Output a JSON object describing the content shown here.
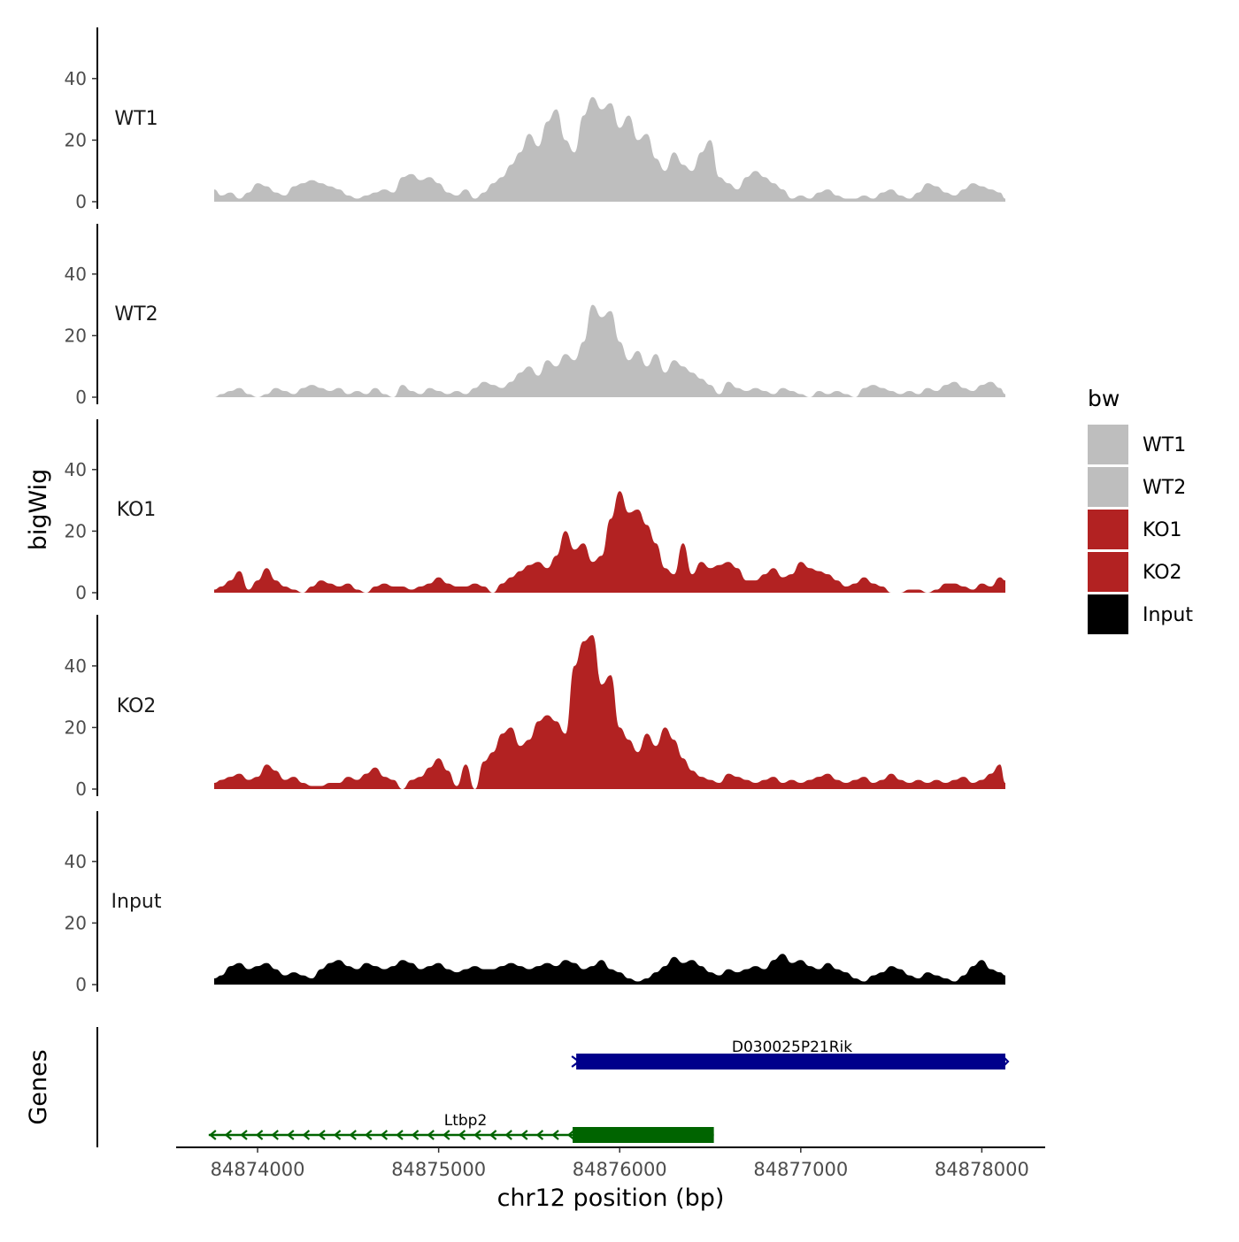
{
  "chart_data": {
    "type": "area",
    "chrom": "chr12",
    "xlabel": "chr12 position (bp)",
    "ylabel": "bigWig",
    "xlim": [
      84873550,
      84878350
    ],
    "data_range": [
      84873760,
      84878130
    ],
    "xticks": [
      84874000,
      84875000,
      84876000,
      84877000,
      84878000
    ],
    "xtick_labels": [
      "84874000",
      "84875000",
      "84876000",
      "84877000",
      "84878000"
    ],
    "ylim": [
      0,
      55
    ],
    "yticks": [
      0,
      20,
      40
    ],
    "ytick_labels": [
      "0",
      "20",
      "40"
    ],
    "legend": {
      "title": "bw",
      "position": "right",
      "items": [
        {
          "label": "WT1",
          "color": "#BEBEBE"
        },
        {
          "label": "WT2",
          "color": "#BEBEBE"
        },
        {
          "label": "KO1",
          "color": "#B22222"
        },
        {
          "label": "KO2",
          "color": "#B22222"
        },
        {
          "label": "Input",
          "color": "#000000"
        }
      ]
    },
    "series": [
      {
        "name": "WT1",
        "color": "#BEBEBE",
        "x": [
          84873760,
          84873800,
          84873850,
          84873900,
          84873950,
          84874000,
          84874050,
          84874100,
          84874150,
          84874200,
          84874250,
          84874300,
          84874350,
          84874400,
          84874450,
          84874500,
          84874550,
          84874600,
          84874650,
          84874700,
          84874750,
          84874800,
          84874850,
          84874900,
          84874950,
          84875000,
          84875050,
          84875100,
          84875150,
          84875200,
          84875250,
          84875300,
          84875350,
          84875400,
          84875450,
          84875500,
          84875550,
          84875600,
          84875650,
          84875700,
          84875750,
          84875800,
          84875850,
          84875900,
          84875950,
          84876000,
          84876050,
          84876100,
          84876150,
          84876200,
          84876250,
          84876300,
          84876350,
          84876400,
          84876450,
          84876500,
          84876550,
          84876600,
          84876650,
          84876700,
          84876750,
          84876800,
          84876850,
          84876900,
          84876950,
          84877000,
          84877050,
          84877100,
          84877150,
          84877200,
          84877250,
          84877300,
          84877350,
          84877400,
          84877450,
          84877500,
          84877550,
          84877600,
          84877650,
          84877700,
          84877750,
          84877800,
          84877850,
          84877900,
          84877950,
          84878000,
          84878050,
          84878100,
          84878130
        ],
        "values": [
          4,
          2,
          3,
          1,
          3,
          6,
          5,
          3,
          2,
          5,
          6,
          7,
          6,
          5,
          4,
          2,
          1,
          2,
          3,
          4,
          3,
          8,
          9,
          7,
          8,
          6,
          3,
          2,
          4,
          1,
          3,
          6,
          8,
          12,
          16,
          22,
          18,
          26,
          30,
          20,
          16,
          28,
          34,
          30,
          32,
          24,
          28,
          20,
          22,
          14,
          10,
          16,
          12,
          10,
          16,
          20,
          8,
          6,
          4,
          8,
          10,
          8,
          6,
          4,
          1,
          2,
          1,
          3,
          4,
          2,
          1,
          1,
          2,
          1,
          3,
          4,
          2,
          1,
          3,
          6,
          5,
          3,
          2,
          4,
          6,
          5,
          4,
          3,
          1
        ]
      },
      {
        "name": "WT2",
        "color": "#BEBEBE",
        "x": [
          84873760,
          84873800,
          84873850,
          84873900,
          84873950,
          84874000,
          84874050,
          84874100,
          84874150,
          84874200,
          84874250,
          84874300,
          84874350,
          84874400,
          84874450,
          84874500,
          84874550,
          84874600,
          84874650,
          84874700,
          84874750,
          84874800,
          84874850,
          84874900,
          84874950,
          84875000,
          84875050,
          84875100,
          84875150,
          84875200,
          84875250,
          84875300,
          84875350,
          84875400,
          84875450,
          84875500,
          84875550,
          84875600,
          84875650,
          84875700,
          84875750,
          84875800,
          84875850,
          84875900,
          84875950,
          84876000,
          84876050,
          84876100,
          84876150,
          84876200,
          84876250,
          84876300,
          84876350,
          84876400,
          84876450,
          84876500,
          84876550,
          84876600,
          84876650,
          84876700,
          84876750,
          84876800,
          84876850,
          84876900,
          84876950,
          84877000,
          84877050,
          84877100,
          84877150,
          84877200,
          84877250,
          84877300,
          84877350,
          84877400,
          84877450,
          84877500,
          84877550,
          84877600,
          84877650,
          84877700,
          84877750,
          84877800,
          84877850,
          84877900,
          84877950,
          84878000,
          84878050,
          84878100,
          84878130
        ],
        "values": [
          0,
          1,
          2,
          3,
          1,
          0,
          1,
          3,
          2,
          1,
          3,
          4,
          3,
          2,
          3,
          1,
          2,
          1,
          3,
          1,
          0,
          4,
          2,
          1,
          3,
          2,
          1,
          2,
          1,
          3,
          5,
          4,
          3,
          5,
          8,
          10,
          7,
          12,
          10,
          14,
          12,
          18,
          30,
          26,
          28,
          18,
          12,
          15,
          10,
          14,
          8,
          12,
          10,
          8,
          6,
          4,
          1,
          5,
          3,
          2,
          3,
          2,
          1,
          3,
          2,
          1,
          0,
          2,
          1,
          2,
          1,
          0,
          3,
          4,
          3,
          2,
          1,
          2,
          1,
          3,
          2,
          4,
          5,
          3,
          2,
          4,
          5,
          3,
          1
        ]
      },
      {
        "name": "KO1",
        "color": "#B22222",
        "x": [
          84873760,
          84873800,
          84873850,
          84873900,
          84873950,
          84874000,
          84874050,
          84874100,
          84874150,
          84874200,
          84874250,
          84874300,
          84874350,
          84874400,
          84874450,
          84874500,
          84874550,
          84874600,
          84874650,
          84874700,
          84874750,
          84874800,
          84874850,
          84874900,
          84874950,
          84875000,
          84875050,
          84875100,
          84875150,
          84875200,
          84875250,
          84875300,
          84875350,
          84875400,
          84875450,
          84875500,
          84875550,
          84875600,
          84875650,
          84875700,
          84875750,
          84875800,
          84875850,
          84875900,
          84875950,
          84876000,
          84876050,
          84876100,
          84876150,
          84876200,
          84876250,
          84876300,
          84876350,
          84876400,
          84876450,
          84876500,
          84876550,
          84876600,
          84876650,
          84876700,
          84876750,
          84876800,
          84876850,
          84876900,
          84876950,
          84877000,
          84877050,
          84877100,
          84877150,
          84877200,
          84877250,
          84877300,
          84877350,
          84877400,
          84877450,
          84877500,
          84877550,
          84877600,
          84877650,
          84877700,
          84877750,
          84877800,
          84877850,
          84877900,
          84877950,
          84878000,
          84878050,
          84878100,
          84878130
        ],
        "values": [
          1,
          2,
          4,
          7,
          1,
          4,
          8,
          4,
          2,
          1,
          0,
          2,
          4,
          3,
          2,
          3,
          1,
          0,
          2,
          3,
          2,
          2,
          1,
          2,
          3,
          5,
          3,
          2,
          2,
          3,
          2,
          0,
          3,
          5,
          7,
          9,
          10,
          8,
          12,
          20,
          14,
          16,
          10,
          12,
          24,
          33,
          26,
          27,
          22,
          16,
          8,
          6,
          16,
          6,
          10,
          8,
          9,
          10,
          8,
          4,
          4,
          6,
          8,
          5,
          6,
          10,
          8,
          7,
          6,
          4,
          2,
          3,
          5,
          3,
          2,
          0,
          0,
          1,
          1,
          0,
          1,
          3,
          3,
          2,
          1,
          3,
          2,
          5,
          4
        ]
      },
      {
        "name": "KO2",
        "color": "#B22222",
        "x": [
          84873760,
          84873800,
          84873850,
          84873900,
          84873950,
          84874000,
          84874050,
          84874100,
          84874150,
          84874200,
          84874250,
          84874300,
          84874350,
          84874400,
          84874450,
          84874500,
          84874550,
          84874600,
          84874650,
          84874700,
          84874750,
          84874800,
          84874850,
          84874900,
          84874950,
          84875000,
          84875050,
          84875100,
          84875150,
          84875200,
          84875250,
          84875300,
          84875350,
          84875400,
          84875450,
          84875500,
          84875550,
          84875600,
          84875650,
          84875700,
          84875750,
          84875800,
          84875850,
          84875900,
          84875950,
          84876000,
          84876050,
          84876100,
          84876150,
          84876200,
          84876250,
          84876300,
          84876350,
          84876400,
          84876450,
          84876500,
          84876550,
          84876600,
          84876650,
          84876700,
          84876750,
          84876800,
          84876850,
          84876900,
          84876950,
          84877000,
          84877050,
          84877100,
          84877150,
          84877200,
          84877250,
          84877300,
          84877350,
          84877400,
          84877450,
          84877500,
          84877550,
          84877600,
          84877650,
          84877700,
          84877750,
          84877800,
          84877850,
          84877900,
          84877950,
          84878000,
          84878050,
          84878100,
          84878130
        ],
        "values": [
          2,
          3,
          4,
          5,
          3,
          4,
          8,
          6,
          3,
          4,
          2,
          1,
          1,
          2,
          2,
          4,
          3,
          5,
          7,
          4,
          3,
          0,
          3,
          4,
          7,
          10,
          6,
          1,
          8,
          0,
          9,
          12,
          18,
          20,
          14,
          16,
          22,
          24,
          22,
          18,
          40,
          48,
          50,
          34,
          37,
          20,
          16,
          12,
          18,
          14,
          20,
          16,
          10,
          6,
          4,
          3,
          2,
          5,
          4,
          3,
          2,
          3,
          4,
          2,
          3,
          2,
          3,
          4,
          5,
          3,
          2,
          3,
          4,
          2,
          3,
          5,
          3,
          2,
          3,
          2,
          3,
          2,
          3,
          4,
          2,
          3,
          5,
          8,
          2
        ]
      },
      {
        "name": "Input",
        "color": "#000000",
        "x": [
          84873760,
          84873800,
          84873850,
          84873900,
          84873950,
          84874000,
          84874050,
          84874100,
          84874150,
          84874200,
          84874250,
          84874300,
          84874350,
          84874400,
          84874450,
          84874500,
          84874550,
          84874600,
          84874650,
          84874700,
          84874750,
          84874800,
          84874850,
          84874900,
          84874950,
          84875000,
          84875050,
          84875100,
          84875150,
          84875200,
          84875250,
          84875300,
          84875350,
          84875400,
          84875450,
          84875500,
          84875550,
          84875600,
          84875650,
          84875700,
          84875750,
          84875800,
          84875850,
          84875900,
          84875950,
          84876000,
          84876050,
          84876100,
          84876150,
          84876200,
          84876250,
          84876300,
          84876350,
          84876400,
          84876450,
          84876500,
          84876550,
          84876600,
          84876650,
          84876700,
          84876750,
          84876800,
          84876850,
          84876900,
          84876950,
          84877000,
          84877050,
          84877100,
          84877150,
          84877200,
          84877250,
          84877300,
          84877350,
          84877400,
          84877450,
          84877500,
          84877550,
          84877600,
          84877650,
          84877700,
          84877750,
          84877800,
          84877850,
          84877900,
          84877950,
          84878000,
          84878050,
          84878100,
          84878130
        ],
        "values": [
          2,
          3,
          6,
          7,
          5,
          6,
          7,
          5,
          3,
          4,
          3,
          2,
          5,
          7,
          8,
          6,
          5,
          7,
          6,
          5,
          6,
          8,
          7,
          5,
          6,
          7,
          5,
          4,
          5,
          6,
          5,
          5,
          6,
          7,
          6,
          5,
          6,
          7,
          6,
          8,
          7,
          5,
          6,
          8,
          5,
          4,
          2,
          1,
          2,
          4,
          6,
          9,
          7,
          8,
          6,
          4,
          3,
          5,
          4,
          5,
          6,
          5,
          8,
          10,
          7,
          8,
          6,
          5,
          7,
          5,
          4,
          2,
          1,
          3,
          4,
          6,
          5,
          3,
          2,
          4,
          3,
          2,
          1,
          3,
          6,
          8,
          5,
          4,
          3
        ]
      }
    ],
    "genes": {
      "track_label": "Genes",
      "items": [
        {
          "name": "D030025P21Rik",
          "strand": "+",
          "color": "#00008B",
          "start": 84875760,
          "end": 84878130,
          "thick_start": 84875760,
          "thick_end": 84878130,
          "row": 1
        },
        {
          "name": "Ltbp2",
          "strand": "-",
          "color": "#006400",
          "start": 84873730,
          "end": 84876520,
          "thick_start": 84875740,
          "thick_end": 84876520,
          "row": 2
        }
      ]
    }
  }
}
